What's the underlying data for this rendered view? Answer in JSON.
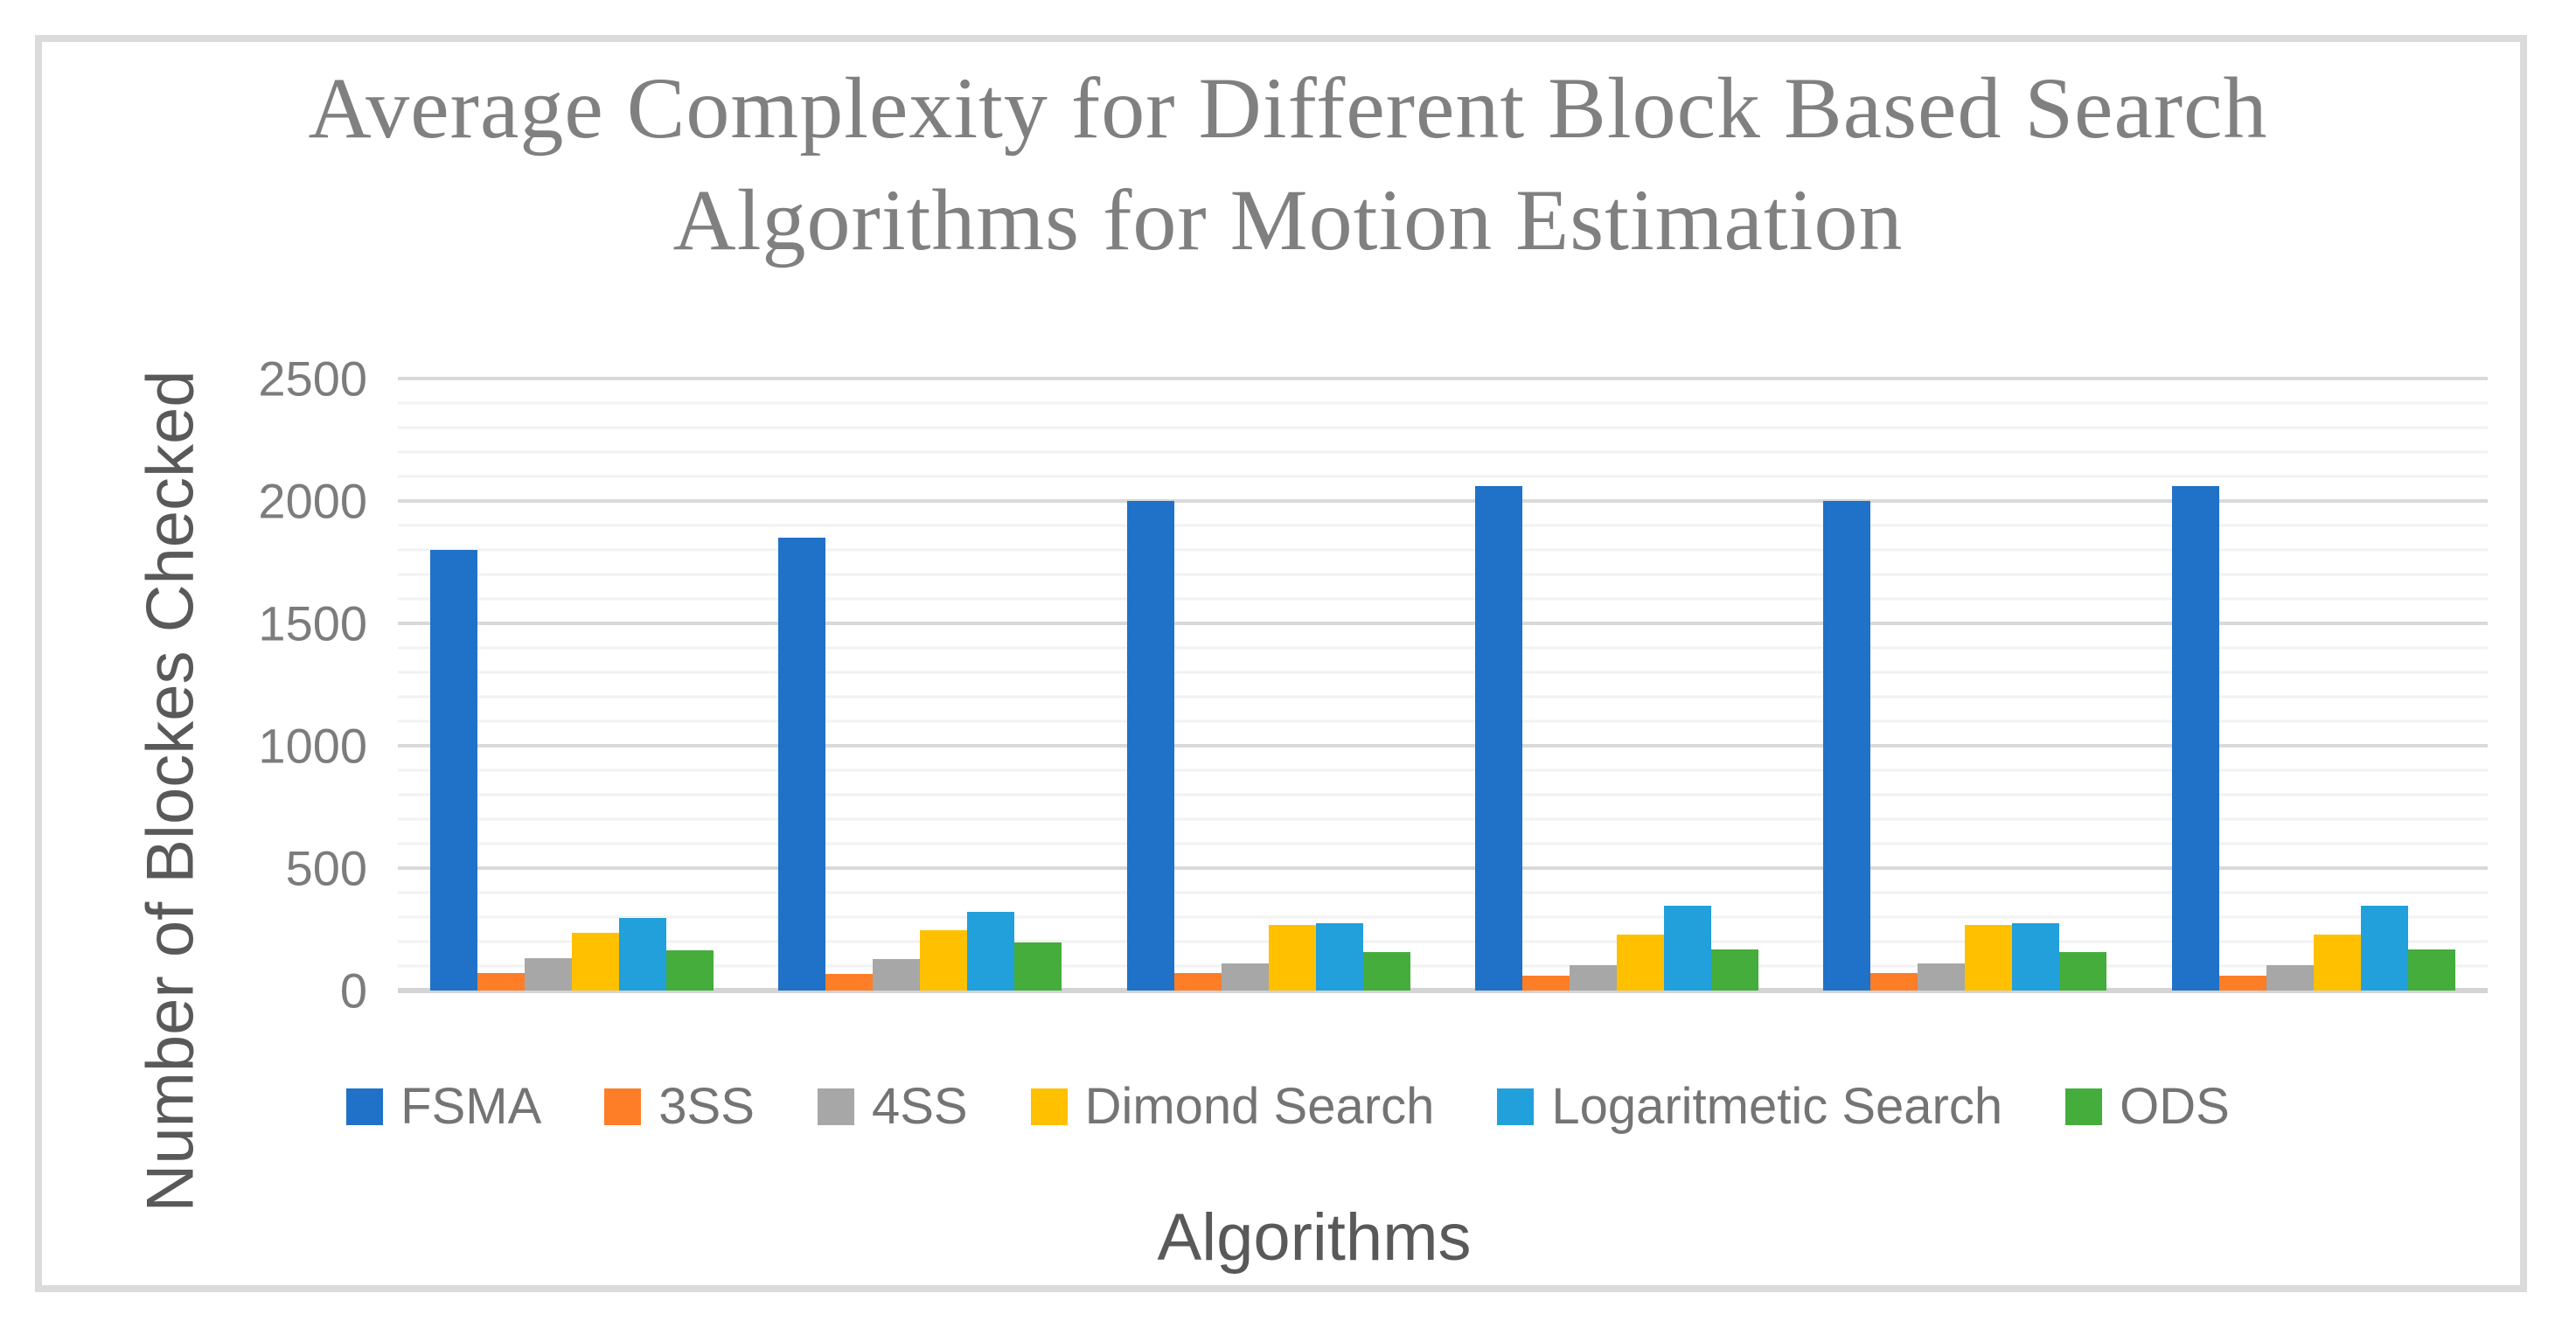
{
  "window": {
    "background": "#FFFFFF",
    "frame_border_color": "#DBDBDB"
  },
  "styles": {
    "title_color": "#808080",
    "axis_title_color": "#595959",
    "tick_label_color": "#7C7C7C",
    "legend_text_color": "#747474",
    "gridline_major_color": "#D9D9D9",
    "gridline_minor_color": "#F2F2F2",
    "axis_line_color": "#D4D4D4"
  },
  "chart_data": {
    "type": "bar",
    "title": "Average Complexity for Different Block Based Search Algorithms for  Motion Estimation",
    "title_lines": [
      "Average Complexity for Different Block Based Search",
      "Algorithms for  Motion Estimation"
    ],
    "xlabel": "Algorithms",
    "ylabel": "Number of Blockes Checked",
    "ylim": [
      0,
      2500
    ],
    "y_major_step": 500,
    "y_minor_step": 100,
    "y_ticks": [
      0,
      500,
      1000,
      1500,
      2000,
      2500
    ],
    "y_tick_labels": [
      "0",
      "500",
      "1000",
      "1500",
      "2000",
      "2500"
    ],
    "grid": true,
    "legend_position": "bottom",
    "categories": [
      "",
      "",
      "",
      "",
      "",
      ""
    ],
    "series": [
      {
        "name": "FSMA",
        "color": "#1F72C8",
        "values": [
          1800,
          1850,
          2000,
          2060,
          2000,
          2060
        ]
      },
      {
        "name": "3SS",
        "color": "#FD7E27",
        "values": [
          72,
          68,
          70,
          62,
          70,
          62
        ]
      },
      {
        "name": "4SS",
        "color": "#A7A7A7",
        "values": [
          132,
          127,
          112,
          104,
          112,
          104
        ]
      },
      {
        "name": "Dimond Search",
        "color": "#FFC000",
        "values": [
          237,
          245,
          268,
          227,
          268,
          227
        ]
      },
      {
        "name": "Logaritmetic Search",
        "color": "#22A0DB",
        "values": [
          296,
          320,
          275,
          346,
          275,
          346
        ]
      },
      {
        "name": "ODS",
        "color": "#44AD3C",
        "values": [
          165,
          198,
          156,
          168,
          156,
          168
        ]
      }
    ]
  }
}
